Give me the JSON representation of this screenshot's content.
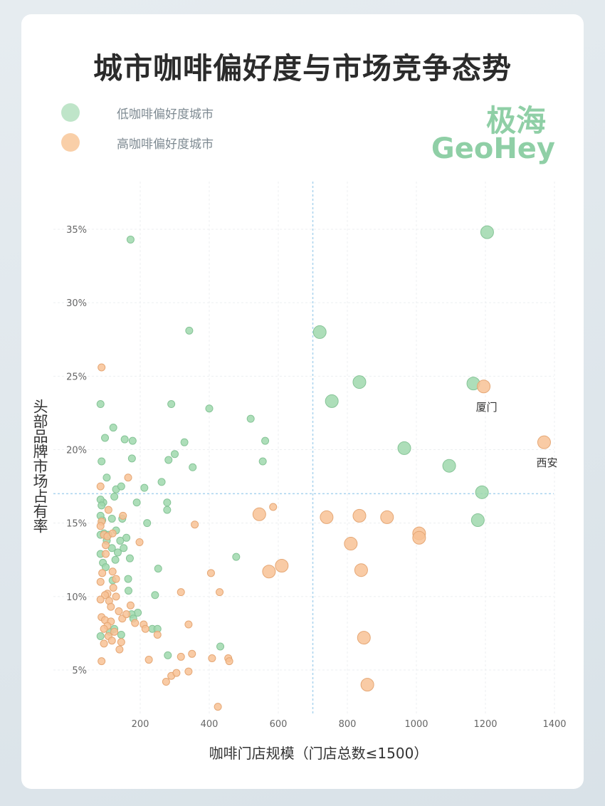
{
  "chart_data": {
    "type": "scatter",
    "title": "城市咖啡偏好度与市场竞争态势",
    "xlabel": "咖啡门店规模（门店总数≤1500）",
    "ylabel": "头部品牌市场占有率",
    "xlim": [
      75,
      1400
    ],
    "ylim": [
      2,
      38
    ],
    "xticks": [
      200,
      400,
      600,
      800,
      1000,
      1200,
      1400
    ],
    "yticks": [
      5,
      10,
      15,
      20,
      25,
      30,
      35
    ],
    "ytick_format": "%",
    "reference_lines": {
      "x": 700,
      "y": 17
    },
    "legend_position": "top-left",
    "grid": true,
    "series": [
      {
        "name": "低咖啡偏好度城市",
        "color": "#9fd8ad",
        "stroke": "#86c497",
        "points": [
          [
            172,
            34.3
          ],
          [
            342,
            28.1
          ],
          [
            290,
            23.1
          ],
          [
            400,
            22.8
          ],
          [
            520,
            22.1
          ],
          [
            562,
            20.6
          ],
          [
            555,
            19.2
          ],
          [
            328,
            20.5
          ],
          [
            300,
            19.7
          ],
          [
            282,
            19.3
          ],
          [
            352,
            18.8
          ],
          [
            262,
            17.8
          ],
          [
            212,
            17.4
          ],
          [
            190,
            16.4
          ],
          [
            178,
            20.6
          ],
          [
            176,
            19.4
          ],
          [
            155,
            20.7
          ],
          [
            122,
            21.5
          ],
          [
            98,
            20.8
          ],
          [
            85,
            23.1
          ],
          [
            88,
            19.2
          ],
          [
            103,
            18.1
          ],
          [
            130,
            17.3
          ],
          [
            145,
            17.5
          ],
          [
            93,
            16.4
          ],
          [
            85,
            16.6
          ],
          [
            88,
            16.2
          ],
          [
            125,
            16.8
          ],
          [
            148,
            15.3
          ],
          [
            90,
            15.2
          ],
          [
            95,
            14.3
          ],
          [
            85,
            14.2
          ],
          [
            108,
            14.2
          ],
          [
            160,
            14.0
          ],
          [
            142,
            13.8
          ],
          [
            118,
            13.3
          ],
          [
            152,
            13.3
          ],
          [
            85,
            12.9
          ],
          [
            92,
            12.3
          ],
          [
            100,
            12.0
          ],
          [
            135,
            13.0
          ],
          [
            170,
            12.6
          ],
          [
            220,
            15.0
          ],
          [
            278,
            15.9
          ],
          [
            278,
            16.4
          ],
          [
            252,
            11.9
          ],
          [
            478,
            12.7
          ],
          [
            165,
            11.2
          ],
          [
            120,
            11.1
          ],
          [
            166,
            10.4
          ],
          [
            243,
            10.1
          ],
          [
            193,
            8.9
          ],
          [
            175,
            8.8
          ],
          [
            180,
            8.5
          ],
          [
            85,
            7.3
          ],
          [
            145,
            7.4
          ],
          [
            112,
            7.6
          ],
          [
            125,
            7.8
          ],
          [
            235,
            7.8
          ],
          [
            250,
            7.8
          ],
          [
            280,
            6.0
          ],
          [
            432,
            6.6
          ],
          [
            85,
            15.5
          ],
          [
            118,
            15.3
          ],
          [
            130,
            14.5
          ],
          [
            103,
            13.8
          ],
          [
            128,
            12.5
          ]
        ],
        "large_points": [
          [
            720,
            28.0
          ],
          [
            835,
            24.6
          ],
          [
            755,
            23.3
          ],
          [
            965,
            20.1
          ],
          [
            1095,
            18.9
          ],
          [
            1165,
            24.5
          ],
          [
            1190,
            17.1
          ],
          [
            1178,
            15.2
          ],
          [
            1205,
            34.8
          ]
        ]
      },
      {
        "name": "高咖啡偏好度城市",
        "color": "#f8c295",
        "stroke": "#e5a775",
        "points": [
          [
            88,
            25.6
          ],
          [
            165,
            18.1
          ],
          [
            85,
            17.5
          ],
          [
            108,
            15.9
          ],
          [
            88,
            15.1
          ],
          [
            85,
            14.8
          ],
          [
            150,
            15.5
          ],
          [
            95,
            14.2
          ],
          [
            100,
            12.9
          ],
          [
            105,
            14.1
          ],
          [
            120,
            14.3
          ],
          [
            198,
            13.7
          ],
          [
            100,
            13.5
          ],
          [
            120,
            11.7
          ],
          [
            130,
            11.2
          ],
          [
            90,
            11.6
          ],
          [
            85,
            11.0
          ],
          [
            122,
            10.6
          ],
          [
            105,
            10.2
          ],
          [
            98,
            10.1
          ],
          [
            130,
            10.0
          ],
          [
            110,
            9.7
          ],
          [
            138,
            9.0
          ],
          [
            85,
            9.8
          ],
          [
            115,
            9.3
          ],
          [
            172,
            9.4
          ],
          [
            88,
            8.6
          ],
          [
            98,
            8.4
          ],
          [
            115,
            8.3
          ],
          [
            148,
            8.5
          ],
          [
            160,
            8.8
          ],
          [
            185,
            8.2
          ],
          [
            210,
            8.1
          ],
          [
            105,
            8.0
          ],
          [
            95,
            7.8
          ],
          [
            125,
            7.6
          ],
          [
            108,
            7.3
          ],
          [
            118,
            7.0
          ],
          [
            145,
            6.9
          ],
          [
            95,
            6.8
          ],
          [
            140,
            6.4
          ],
          [
            88,
            5.6
          ],
          [
            225,
            5.7
          ],
          [
            215,
            7.8
          ],
          [
            250,
            7.4
          ],
          [
            275,
            4.2
          ],
          [
            290,
            4.6
          ],
          [
            305,
            4.8
          ],
          [
            340,
            4.9
          ],
          [
            318,
            5.9
          ],
          [
            350,
            6.1
          ],
          [
            340,
            8.1
          ],
          [
            318,
            10.3
          ],
          [
            358,
            14.9
          ],
          [
            430,
            10.3
          ],
          [
            405,
            11.6
          ],
          [
            408,
            5.8
          ],
          [
            455,
            5.8
          ],
          [
            458,
            5.6
          ],
          [
            425,
            2.5
          ],
          [
            585,
            16.1
          ]
        ],
        "large_points": [
          [
            545,
            15.6
          ],
          [
            573,
            11.7
          ],
          [
            610,
            12.1
          ],
          [
            740,
            15.4
          ],
          [
            810,
            13.6
          ],
          [
            835,
            15.5
          ],
          [
            840,
            11.8
          ],
          [
            915,
            15.4
          ],
          [
            1008,
            14.3
          ],
          [
            1008,
            14.0
          ],
          [
            848,
            7.2
          ],
          [
            858,
            4.0
          ],
          [
            1195,
            24.3
          ],
          [
            1370,
            20.5
          ]
        ],
        "annotations": [
          {
            "label": "厦门",
            "x": 1195,
            "y": 24.3
          },
          {
            "label": "西安",
            "x": 1370,
            "y": 20.5
          }
        ]
      }
    ]
  },
  "brand": {
    "cn": "极海",
    "en": "GeoHey"
  }
}
